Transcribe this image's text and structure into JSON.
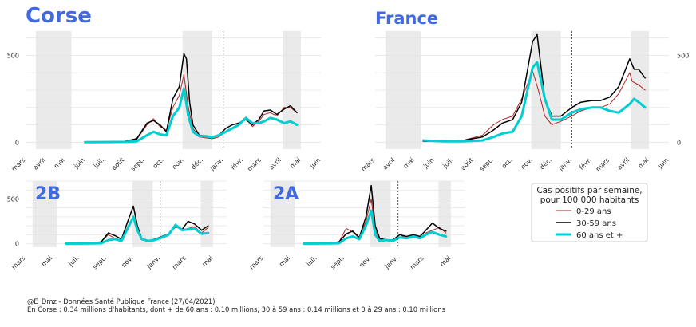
{
  "footer": {
    "line1": "@E_Dmz - Données Santé Publique France (27/04/2021)",
    "line2": "En Corse : 0.34 millions d'habitants, dont + de 60 ans : 0.10 millions, 30 à 59 ans : 0.14 millions et 0 à 29 ans : 0.10 millions"
  },
  "legend": {
    "title_line1": "Cas positifs par semaine,",
    "title_line2": "pour 100 000 habitants",
    "entries": [
      {
        "label": "0-29 ans",
        "color": "#b22222"
      },
      {
        "label": "30-59 ans",
        "color": "#000000"
      },
      {
        "label": "60 ans et +",
        "color": "#00ced1"
      }
    ]
  },
  "colors": {
    "title": "#4169e1",
    "young": "#b22222",
    "mid": "#000000",
    "old": "#00ced1",
    "shade": "#d9d9d9"
  },
  "chart_data": [
    {
      "type": "line",
      "title": "Corse",
      "ylim": [
        -40,
        640
      ],
      "yticks": [
        0,
        500
      ],
      "xlim": [
        "2020-03-01",
        "2021-06-01"
      ],
      "xtick_dates": [
        "2020-03-01",
        "2020-04-01",
        "2020-05-01",
        "2020-06-01",
        "2020-07-01",
        "2020-08-01",
        "2020-09-01",
        "2020-10-01",
        "2020-11-01",
        "2020-12-01",
        "2021-01-01",
        "2021-02-01",
        "2021-03-01",
        "2021-04-01",
        "2021-05-01",
        "2021-06-01"
      ],
      "xtick_labels": [
        "mars",
        "avril",
        "mai",
        "juin",
        "juil.",
        "août",
        "sept.",
        "oct.",
        "nov.",
        "déc.",
        "janv.",
        "févr.",
        "mars",
        "avril",
        "mai",
        "juin"
      ],
      "shaded_periods": [
        [
          "2020-03-17",
          "2020-05-11"
        ],
        [
          "2020-10-30",
          "2020-12-15"
        ],
        [
          "2021-04-03",
          "2021-05-01"
        ]
      ],
      "vline": "2021-01-01",
      "series": [
        {
          "name": "0-29 ans",
          "x": [
            "2020-06-01",
            "2020-07-01",
            "2020-08-01",
            "2020-08-20",
            "2020-09-05",
            "2020-09-15",
            "2020-09-25",
            "2020-10-05",
            "2020-10-15",
            "2020-10-25",
            "2020-11-01",
            "2020-11-08",
            "2020-11-15",
            "2020-11-25",
            "2020-12-05",
            "2020-12-15",
            "2020-12-25",
            "2021-01-05",
            "2021-01-15",
            "2021-01-25",
            "2021-02-05",
            "2021-02-15",
            "2021-02-25",
            "2021-03-05",
            "2021-03-15",
            "2021-03-25",
            "2021-04-05",
            "2021-04-15",
            "2021-04-25"
          ],
          "y": [
            0,
            2,
            4,
            15,
            100,
            135,
            90,
            70,
            200,
            270,
            390,
            200,
            80,
            30,
            25,
            20,
            30,
            60,
            80,
            110,
            140,
            90,
            120,
            160,
            170,
            150,
            200,
            200,
            170
          ]
        },
        {
          "name": "30-59 ans",
          "x": [
            "2020-06-01",
            "2020-07-01",
            "2020-08-01",
            "2020-08-20",
            "2020-09-05",
            "2020-09-15",
            "2020-09-25",
            "2020-10-05",
            "2020-10-15",
            "2020-10-25",
            "2020-11-01",
            "2020-11-05",
            "2020-11-10",
            "2020-11-15",
            "2020-11-25",
            "2020-12-05",
            "2020-12-15",
            "2020-12-25",
            "2021-01-05",
            "2021-01-15",
            "2021-01-25",
            "2021-02-05",
            "2021-02-15",
            "2021-02-25",
            "2021-03-05",
            "2021-03-15",
            "2021-03-25",
            "2021-04-05",
            "2021-04-15",
            "2021-04-25"
          ],
          "y": [
            0,
            2,
            4,
            20,
            110,
            125,
            100,
            60,
            250,
            320,
            510,
            480,
            230,
            100,
            40,
            35,
            30,
            40,
            80,
            100,
            110,
            130,
            100,
            130,
            180,
            185,
            160,
            190,
            210,
            170
          ]
        },
        {
          "name": "60 ans et +",
          "x": [
            "2020-06-01",
            "2020-07-01",
            "2020-08-01",
            "2020-08-20",
            "2020-09-05",
            "2020-09-15",
            "2020-09-25",
            "2020-10-05",
            "2020-10-15",
            "2020-10-25",
            "2020-11-01",
            "2020-11-08",
            "2020-11-15",
            "2020-11-25",
            "2020-12-05",
            "2020-12-15",
            "2020-12-25",
            "2021-01-05",
            "2021-01-15",
            "2021-01-25",
            "2021-02-05",
            "2021-02-15",
            "2021-02-25",
            "2021-03-05",
            "2021-03-15",
            "2021-03-25",
            "2021-04-05",
            "2021-04-15",
            "2021-04-25"
          ],
          "y": [
            0,
            1,
            2,
            5,
            40,
            60,
            45,
            40,
            150,
            200,
            310,
            150,
            60,
            35,
            35,
            30,
            40,
            60,
            80,
            100,
            140,
            110,
            110,
            120,
            140,
            130,
            110,
            120,
            100
          ]
        }
      ]
    },
    {
      "type": "line",
      "title": "France",
      "ylim": [
        -40,
        640
      ],
      "yticks": [
        0,
        500
      ],
      "xlim": [
        "2020-03-01",
        "2021-06-01"
      ],
      "xtick_dates": [
        "2020-03-01",
        "2020-04-01",
        "2020-05-01",
        "2020-06-01",
        "2020-07-01",
        "2020-08-01",
        "2020-09-01",
        "2020-10-01",
        "2020-11-01",
        "2020-12-01",
        "2021-01-01",
        "2021-02-01",
        "2021-03-01",
        "2021-04-01",
        "2021-05-01",
        "2021-06-01"
      ],
      "xtick_labels": [
        "mars",
        "avril",
        "mai",
        "juin",
        "juil.",
        "août",
        "sept.",
        "oct.",
        "nov.",
        "déc.",
        "janv.",
        "févr.",
        "mars",
        "avril",
        "mai",
        "juin"
      ],
      "shaded_periods": [
        [
          "2020-03-17",
          "2020-05-11"
        ],
        [
          "2020-10-30",
          "2020-12-15"
        ],
        [
          "2021-04-03",
          "2021-05-01"
        ]
      ],
      "vline": "2021-01-01",
      "series": [
        {
          "name": "0-29 ans",
          "x": [
            "2020-05-15",
            "2020-06-15",
            "2020-07-15",
            "2020-08-15",
            "2020-09-01",
            "2020-09-15",
            "2020-10-01",
            "2020-10-15",
            "2020-11-01",
            "2020-11-10",
            "2020-11-20",
            "2020-12-01",
            "2020-12-15",
            "2021-01-01",
            "2021-01-15",
            "2021-02-01",
            "2021-02-15",
            "2021-03-01",
            "2021-03-15",
            "2021-04-01",
            "2021-04-05",
            "2021-04-15",
            "2021-04-25"
          ],
          "y": [
            5,
            5,
            10,
            40,
            100,
            130,
            150,
            250,
            410,
            300,
            150,
            100,
            120,
            150,
            180,
            200,
            200,
            220,
            280,
            400,
            350,
            330,
            300
          ]
        },
        {
          "name": "30-59 ans",
          "x": [
            "2020-05-15",
            "2020-06-15",
            "2020-07-15",
            "2020-08-15",
            "2020-09-01",
            "2020-09-15",
            "2020-10-01",
            "2020-10-15",
            "2020-11-01",
            "2020-11-08",
            "2020-11-20",
            "2020-12-01",
            "2020-12-15",
            "2021-01-01",
            "2021-01-15",
            "2021-02-01",
            "2021-02-15",
            "2021-03-01",
            "2021-03-15",
            "2021-04-01",
            "2021-04-08",
            "2021-04-15",
            "2021-04-25"
          ],
          "y": [
            5,
            5,
            10,
            30,
            70,
            110,
            130,
            230,
            580,
            620,
            250,
            150,
            150,
            200,
            230,
            240,
            240,
            260,
            320,
            480,
            420,
            420,
            370
          ]
        },
        {
          "name": "60 ans et +",
          "x": [
            "2020-05-15",
            "2020-06-15",
            "2020-07-15",
            "2020-08-15",
            "2020-09-01",
            "2020-09-15",
            "2020-10-01",
            "2020-10-15",
            "2020-11-01",
            "2020-11-08",
            "2020-11-20",
            "2020-12-01",
            "2020-12-15",
            "2021-01-01",
            "2021-01-15",
            "2021-02-01",
            "2021-02-15",
            "2021-03-01",
            "2021-03-15",
            "2021-04-01",
            "2021-04-08",
            "2021-04-15",
            "2021-04-25"
          ],
          "y": [
            10,
            5,
            5,
            10,
            30,
            50,
            60,
            150,
            430,
            460,
            250,
            130,
            130,
            170,
            190,
            200,
            200,
            180,
            170,
            220,
            250,
            230,
            200
          ]
        }
      ]
    },
    {
      "type": "line",
      "title": "2B",
      "ylim": [
        -40,
        700
      ],
      "yticks": [
        0,
        500
      ],
      "xlim": [
        "2020-03-01",
        "2021-06-01"
      ],
      "xtick_dates": [
        "2020-03-01",
        "2020-05-01",
        "2020-07-01",
        "2020-09-01",
        "2020-11-01",
        "2021-01-01",
        "2021-03-01",
        "2021-05-01"
      ],
      "xtick_labels": [
        "mars",
        "mai",
        "juil.",
        "sept.",
        "nov.",
        "janv.",
        "mars",
        "mai"
      ],
      "shaded_periods": [
        [
          "2020-03-17",
          "2020-05-11"
        ],
        [
          "2020-10-30",
          "2020-12-15"
        ],
        [
          "2021-04-03",
          "2021-05-01"
        ]
      ],
      "vline": "2021-01-01",
      "series": [
        {
          "name": "0-29 ans",
          "x": [
            "2020-06-01",
            "2020-08-01",
            "2020-08-20",
            "2020-09-05",
            "2020-09-20",
            "2020-10-05",
            "2020-10-20",
            "2020-11-01",
            "2020-11-10",
            "2020-11-20",
            "2020-12-05",
            "2020-12-20",
            "2021-01-05",
            "2021-01-20",
            "2021-02-05",
            "2021-02-20",
            "2021-03-05",
            "2021-03-20",
            "2021-04-05",
            "2021-04-20"
          ],
          "y": [
            0,
            5,
            20,
            100,
            60,
            40,
            200,
            310,
            200,
            60,
            30,
            40,
            60,
            90,
            200,
            150,
            170,
            190,
            120,
            180
          ]
        },
        {
          "name": "30-59 ans",
          "x": [
            "2020-06-01",
            "2020-08-01",
            "2020-08-20",
            "2020-09-05",
            "2020-09-20",
            "2020-10-05",
            "2020-10-20",
            "2020-11-01",
            "2020-11-10",
            "2020-11-20",
            "2020-12-05",
            "2020-12-20",
            "2021-01-05",
            "2021-01-20",
            "2021-02-05",
            "2021-02-20",
            "2021-03-05",
            "2021-03-20",
            "2021-04-05",
            "2021-04-20"
          ],
          "y": [
            0,
            5,
            20,
            120,
            90,
            50,
            260,
            420,
            200,
            60,
            30,
            50,
            80,
            110,
            190,
            160,
            250,
            220,
            150,
            200
          ]
        },
        {
          "name": "60 ans et +",
          "x": [
            "2020-06-01",
            "2020-08-01",
            "2020-08-20",
            "2020-09-05",
            "2020-09-20",
            "2020-10-05",
            "2020-10-20",
            "2020-11-01",
            "2020-11-10",
            "2020-11-20",
            "2020-12-05",
            "2020-12-20",
            "2021-01-05",
            "2021-01-20",
            "2021-02-05",
            "2021-02-20",
            "2021-03-05",
            "2021-03-20",
            "2021-04-05",
            "2021-04-20"
          ],
          "y": [
            0,
            2,
            5,
            40,
            50,
            30,
            180,
            300,
            150,
            50,
            30,
            40,
            70,
            100,
            210,
            150,
            160,
            170,
            110,
            120
          ]
        }
      ]
    },
    {
      "type": "line",
      "title": "2A",
      "ylim": [
        -40,
        700
      ],
      "yticks": [
        0,
        500
      ],
      "xlim": [
        "2020-03-01",
        "2021-06-01"
      ],
      "xtick_dates": [
        "2020-03-01",
        "2020-05-01",
        "2020-07-01",
        "2020-09-01",
        "2020-11-01",
        "2021-01-01",
        "2021-03-01",
        "2021-05-01"
      ],
      "xtick_labels": [
        "mars",
        "mai",
        "juil.",
        "sept.",
        "nov.",
        "janv.",
        "mars",
        "mai"
      ],
      "shaded_periods": [
        [
          "2020-03-17",
          "2020-05-11"
        ],
        [
          "2020-10-30",
          "2020-12-15"
        ],
        [
          "2021-04-03",
          "2021-05-01"
        ]
      ],
      "vline": "2021-01-01",
      "series": [
        {
          "name": "0-29 ans",
          "x": [
            "2020-06-01",
            "2020-08-01",
            "2020-08-20",
            "2020-09-05",
            "2020-09-20",
            "2020-10-05",
            "2020-10-20",
            "2020-11-01",
            "2020-11-10",
            "2020-11-20",
            "2020-12-05",
            "2020-12-20",
            "2021-01-05",
            "2021-01-20",
            "2021-02-05",
            "2021-02-20",
            "2021-03-05",
            "2021-03-20",
            "2021-04-05",
            "2021-04-20"
          ],
          "y": [
            0,
            5,
            20,
            170,
            130,
            60,
            250,
            500,
            150,
            50,
            40,
            30,
            100,
            60,
            80,
            60,
            120,
            150,
            180,
            120
          ]
        },
        {
          "name": "30-59 ans",
          "x": [
            "2020-06-01",
            "2020-08-01",
            "2020-08-20",
            "2020-09-05",
            "2020-09-20",
            "2020-10-05",
            "2020-10-20",
            "2020-11-01",
            "2020-11-10",
            "2020-11-20",
            "2020-12-05",
            "2020-12-20",
            "2021-01-05",
            "2021-01-20",
            "2021-02-05",
            "2021-02-20",
            "2021-03-05",
            "2021-03-20",
            "2021-04-05",
            "2021-04-20"
          ],
          "y": [
            0,
            5,
            20,
            110,
            140,
            70,
            300,
            650,
            200,
            60,
            40,
            40,
            100,
            80,
            100,
            80,
            150,
            230,
            170,
            140
          ]
        },
        {
          "name": "60 ans et +",
          "x": [
            "2020-06-01",
            "2020-08-01",
            "2020-08-20",
            "2020-09-05",
            "2020-09-20",
            "2020-10-05",
            "2020-10-20",
            "2020-11-01",
            "2020-11-10",
            "2020-11-20",
            "2020-12-05",
            "2020-12-20",
            "2021-01-05",
            "2021-01-20",
            "2021-02-05",
            "2021-02-20",
            "2021-03-05",
            "2021-03-20",
            "2021-04-05",
            "2021-04-20"
          ],
          "y": [
            0,
            2,
            5,
            60,
            80,
            50,
            200,
            370,
            100,
            30,
            40,
            30,
            70,
            60,
            80,
            60,
            100,
            130,
            100,
            80
          ]
        }
      ]
    }
  ]
}
